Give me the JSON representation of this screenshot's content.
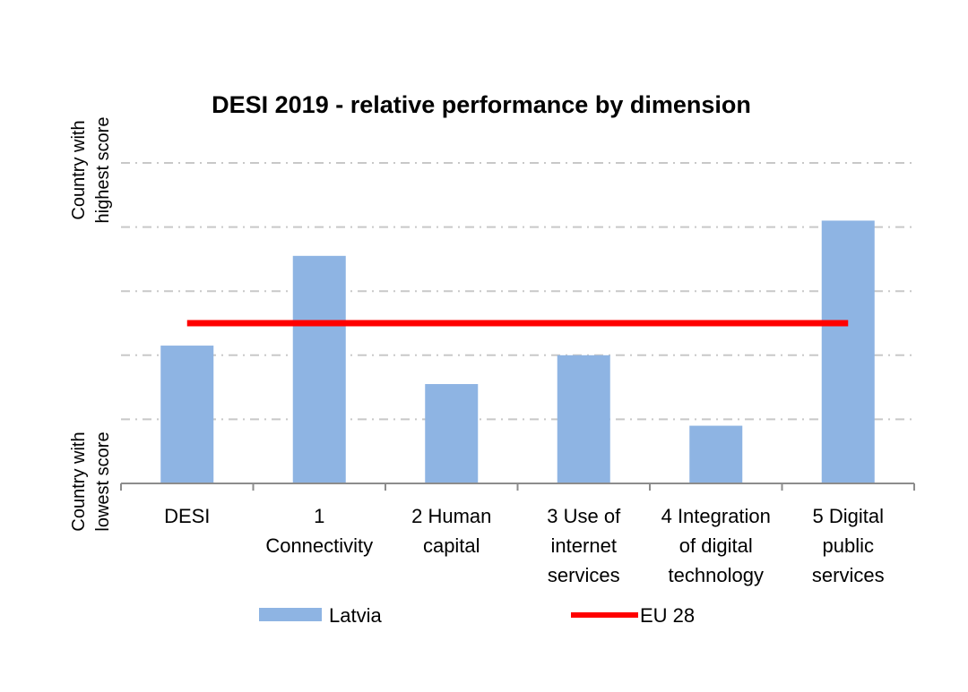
{
  "chart_data": {
    "type": "bar",
    "title": "DESI 2019 -  relative performance by dimension",
    "ylabel_top": [
      "Country with",
      "highest score"
    ],
    "ylabel_bottom": [
      "Country with",
      "lowest score"
    ],
    "categories": [
      [
        "DESI"
      ],
      [
        "1",
        "Connectivity"
      ],
      [
        "2 Human",
        "capital"
      ],
      [
        "3 Use of",
        "internet",
        "services"
      ],
      [
        "4 Integration",
        "of digital",
        "technology"
      ],
      [
        "5 Digital",
        "public",
        "services"
      ]
    ],
    "series": [
      {
        "name": "Latvia",
        "type": "bar",
        "color": "#8eb4e3",
        "values": [
          0.43,
          0.71,
          0.31,
          0.4,
          0.18,
          0.82
        ]
      }
    ],
    "reference_line": {
      "name": "EU 28",
      "value": 0.5,
      "color": "#ff0000"
    },
    "ylim": [
      0,
      1
    ],
    "grid": true,
    "legend_position": "bottom"
  }
}
